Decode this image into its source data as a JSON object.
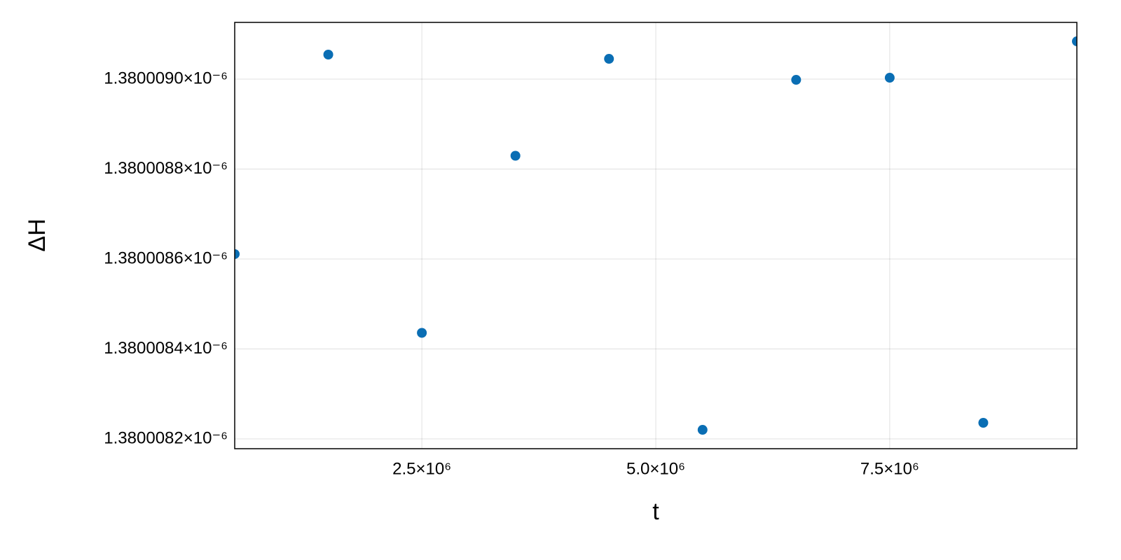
{
  "chart_data": {
    "type": "scatter",
    "x_label": "t",
    "y_label": "ΔH",
    "x": [
      500000,
      1500000,
      2500000,
      3500000,
      4500000,
      5500000,
      6500000,
      7500000,
      8500000,
      9500000
    ],
    "series": [
      {
        "color": "#0a6eb4",
        "values": [
          1.380008611e-06,
          1.3800090545e-06,
          1.3800084358e-06,
          1.3800088296e-06,
          1.3800090451e-06,
          1.3800082202e-06,
          1.3800089984e-06,
          1.3800090031e-06,
          1.3800082358e-06,
          1.380009084e-06
        ]
      }
    ],
    "xlim": [
      500000,
      9500000
    ],
    "xticks": [
      {
        "value": 2500000,
        "label": "2.5×10⁶"
      },
      {
        "value": 5000000,
        "label": "5.0×10⁶"
      },
      {
        "value": 7500000,
        "label": "7.5×10⁶"
      }
    ],
    "ylim": [
      1.3800081782e-06,
      1.3800091261e-06
    ],
    "yticks": [
      {
        "value": 1.3800082e-06,
        "label": "1.3800082×10⁻⁶"
      },
      {
        "value": 1.3800084e-06,
        "label": "1.3800084×10⁻⁶"
      },
      {
        "value": 1.3800086e-06,
        "label": "1.3800086×10⁻⁶"
      },
      {
        "value": 1.3800088e-06,
        "label": "1.3800088×10⁻⁶"
      },
      {
        "value": 1.380009e-06,
        "label": "1.3800090×10⁻⁶"
      }
    ],
    "grid": true
  }
}
